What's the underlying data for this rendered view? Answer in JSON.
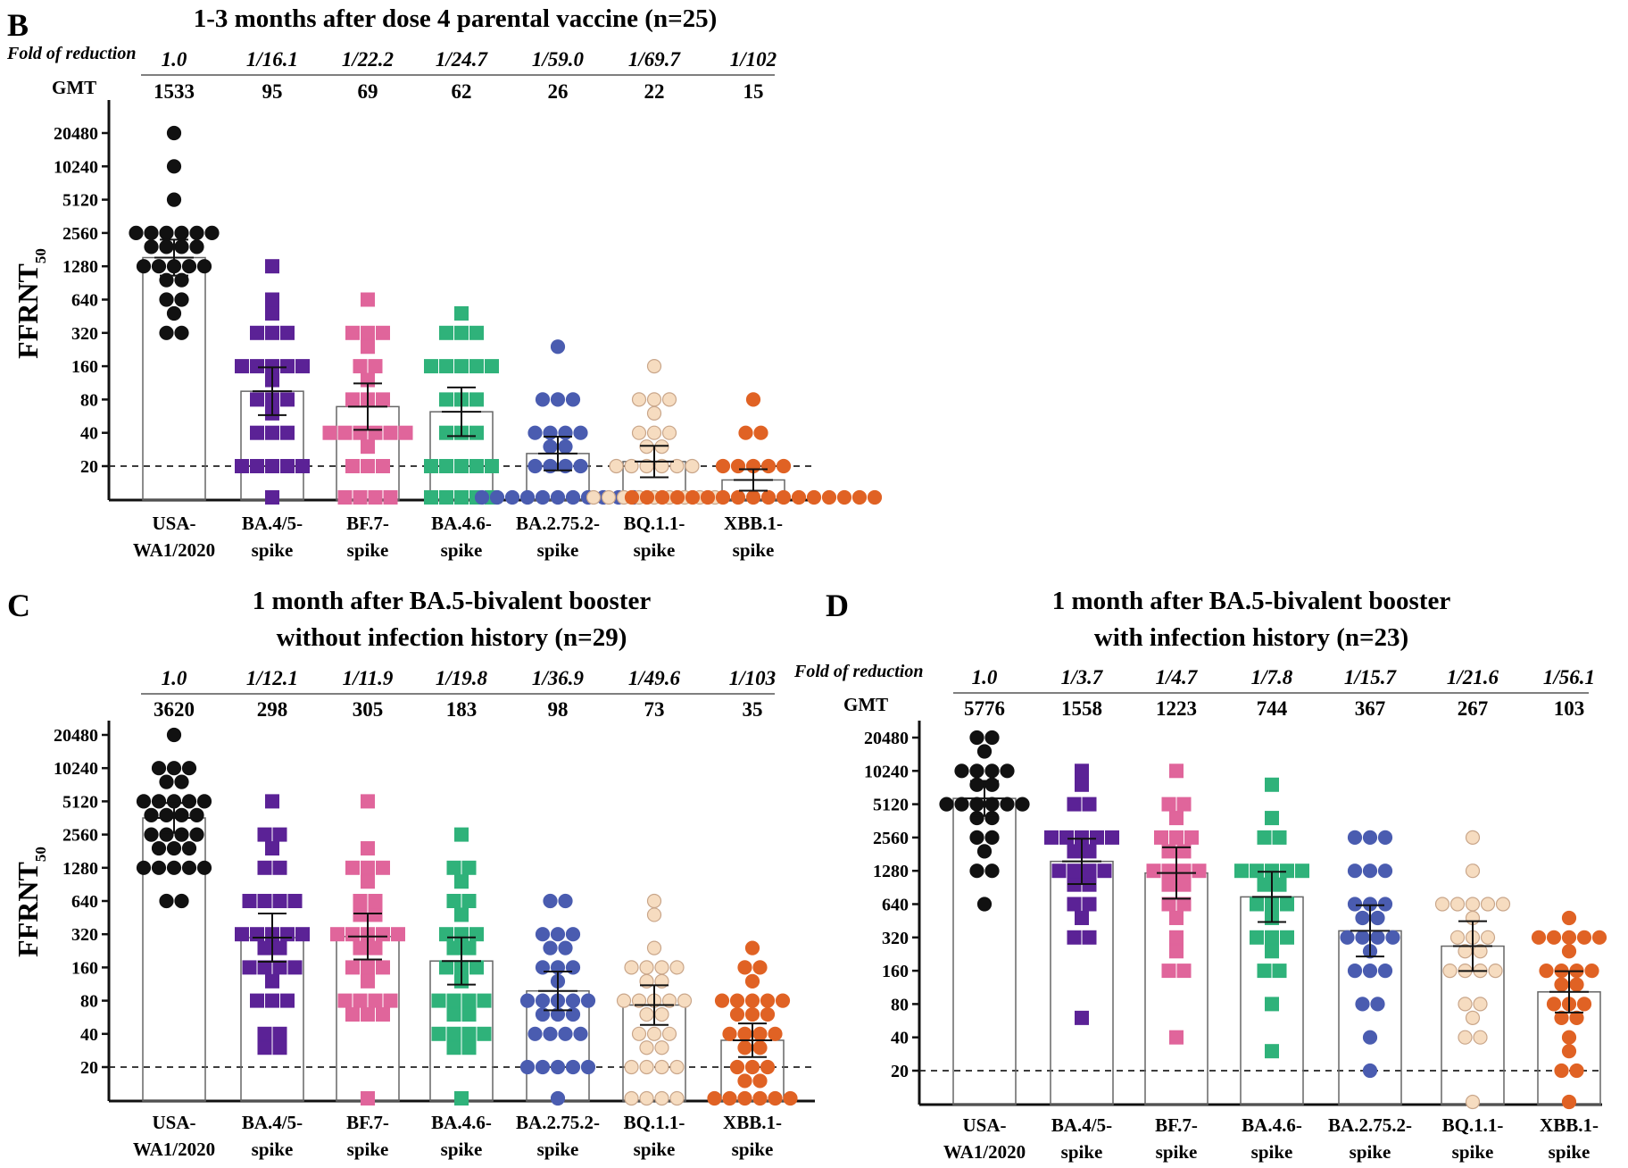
{
  "colors": {
    "USA-WA1/2020": "#111111",
    "BA.4/5-spike": "#5b2296",
    "BF.7-spike": "#e0659b",
    "BA.4.6-spike": "#2fb27a",
    "BA.2.75.2-spike": "#4a5cb0",
    "BQ.1.1-spike": "#f6dcc0",
    "XBB.1-spike": "#e06224"
  },
  "chart_data": [
    {
      "panel": "B",
      "type": "scatter",
      "title_lines": [
        "1-3 months after dose 4 parental vaccine (n=25)"
      ],
      "fold_label": "Fold of reduction",
      "gmt_label": "GMT",
      "ylabel": "FFRNT50",
      "y_scale": "log2",
      "y_ticks": [
        20,
        40,
        80,
        160,
        320,
        640,
        1280,
        2560,
        5120,
        10240,
        20480
      ],
      "limit_of_detection": 20,
      "categories": [
        {
          "name": "USA-WA1/2020",
          "label_lines": [
            "USA-",
            "WA1/2020"
          ],
          "marker": "circle",
          "fold": "1.0",
          "gmt": 1533,
          "values": [
            20480,
            10240,
            5120,
            2560,
            2560,
            2560,
            2560,
            2560,
            2560,
            1920,
            1920,
            1920,
            1920,
            1280,
            1280,
            1280,
            1280,
            1280,
            960,
            960,
            640,
            640,
            480,
            320,
            320
          ]
        },
        {
          "name": "BA.4/5-spike",
          "label_lines": [
            "BA.4/5-",
            "spike"
          ],
          "marker": "square",
          "fold": "1/16.1",
          "gmt": 95,
          "values": [
            1280,
            640,
            480,
            320,
            320,
            320,
            160,
            160,
            160,
            160,
            160,
            120,
            80,
            80,
            80,
            60,
            40,
            40,
            40,
            20,
            20,
            20,
            20,
            20,
            10
          ]
        },
        {
          "name": "BF.7-spike",
          "label_lines": [
            "BF.7-",
            "spike"
          ],
          "marker": "square",
          "fold": "1/22.2",
          "gmt": 69,
          "values": [
            640,
            320,
            320,
            320,
            240,
            160,
            160,
            120,
            80,
            80,
            80,
            40,
            40,
            40,
            40,
            40,
            40,
            30,
            20,
            20,
            20,
            10,
            10,
            10,
            10
          ]
        },
        {
          "name": "BA.4.6-spike",
          "label_lines": [
            "BA.4.6-",
            "spike"
          ],
          "marker": "square",
          "fold": "1/24.7",
          "gmt": 62,
          "values": [
            480,
            320,
            320,
            320,
            160,
            160,
            160,
            160,
            160,
            80,
            80,
            80,
            40,
            40,
            40,
            20,
            20,
            20,
            20,
            20,
            10,
            10,
            10,
            10,
            10
          ]
        },
        {
          "name": "BA.2.75.2-spike",
          "label_lines": [
            "BA.2.75.2-",
            "spike"
          ],
          "marker": "circle",
          "fold": "1/59.0",
          "gmt": 26,
          "values": [
            240,
            80,
            80,
            80,
            40,
            40,
            40,
            40,
            30,
            30,
            20,
            20,
            20,
            20,
            10,
            10,
            10,
            10,
            10,
            10,
            10,
            10,
            10,
            10,
            10
          ]
        },
        {
          "name": "BQ.1.1-spike",
          "label_lines": [
            "BQ.1.1-",
            "spike"
          ],
          "marker": "circle",
          "fold": "1/69.7",
          "gmt": 22,
          "values": [
            160,
            80,
            80,
            80,
            60,
            40,
            40,
            40,
            30,
            30,
            20,
            20,
            20,
            20,
            20,
            20,
            10,
            10,
            10,
            10,
            10,
            10,
            10,
            10,
            10
          ]
        },
        {
          "name": "XBB.1-spike",
          "label_lines": [
            "XBB.1-",
            "spike"
          ],
          "marker": "circle",
          "fold": "1/102",
          "gmt": 15,
          "values": [
            80,
            40,
            40,
            20,
            20,
            20,
            20,
            20,
            10,
            10,
            10,
            10,
            10,
            10,
            10,
            10,
            10,
            10,
            10,
            10,
            10,
            10,
            10,
            10,
            10
          ]
        }
      ]
    },
    {
      "panel": "C",
      "type": "scatter",
      "title_lines": [
        "1 month after BA.5-bivalent booster",
        "without infection history (n=29)"
      ],
      "fold_label": "",
      "gmt_label": "",
      "ylabel": "FFRNT50",
      "y_scale": "log2",
      "y_ticks": [
        20,
        40,
        80,
        160,
        320,
        640,
        1280,
        2560,
        5120,
        10240,
        20480
      ],
      "limit_of_detection": 20,
      "categories": [
        {
          "name": "USA-WA1/2020",
          "label_lines": [
            "USA-",
            "WA1/2020"
          ],
          "marker": "circle",
          "fold": "1.0",
          "gmt": 3620,
          "values": [
            20480,
            10240,
            10240,
            10240,
            7680,
            7680,
            5120,
            5120,
            5120,
            5120,
            5120,
            3840,
            3840,
            3840,
            3840,
            2560,
            2560,
            2560,
            2560,
            1920,
            1920,
            1920,
            1280,
            1280,
            1280,
            1280,
            1280,
            640,
            640
          ]
        },
        {
          "name": "BA.4/5-spike",
          "label_lines": [
            "BA.4/5-",
            "spike"
          ],
          "marker": "square",
          "fold": "1/12.1",
          "gmt": 298,
          "values": [
            5120,
            2560,
            2560,
            1920,
            1280,
            1280,
            640,
            640,
            640,
            640,
            320,
            320,
            320,
            320,
            320,
            240,
            240,
            160,
            160,
            160,
            160,
            120,
            80,
            80,
            80,
            40,
            40,
            30,
            30
          ]
        },
        {
          "name": "BF.7-spike",
          "label_lines": [
            "BF.7-",
            "spike"
          ],
          "marker": "square",
          "fold": "1/11.9",
          "gmt": 305,
          "values": [
            5120,
            1920,
            1280,
            1280,
            1280,
            960,
            640,
            640,
            480,
            480,
            320,
            320,
            320,
            320,
            320,
            240,
            240,
            160,
            160,
            160,
            120,
            80,
            80,
            80,
            80,
            60,
            60,
            60,
            10
          ]
        },
        {
          "name": "BA.4.6-spike",
          "label_lines": [
            "BA.4.6-",
            "spike"
          ],
          "marker": "square",
          "fold": "1/19.8",
          "gmt": 183,
          "values": [
            2560,
            1280,
            1280,
            960,
            640,
            640,
            480,
            320,
            320,
            320,
            240,
            240,
            160,
            160,
            160,
            120,
            80,
            80,
            80,
            80,
            60,
            60,
            40,
            40,
            40,
            40,
            30,
            30,
            10
          ]
        },
        {
          "name": "BA.2.75.2-spike",
          "label_lines": [
            "BA.2.75.2-",
            "spike"
          ],
          "marker": "circle",
          "fold": "1/36.9",
          "gmt": 98,
          "values": [
            640,
            640,
            320,
            320,
            320,
            240,
            240,
            160,
            160,
            160,
            120,
            80,
            80,
            80,
            80,
            80,
            60,
            60,
            60,
            40,
            40,
            40,
            40,
            20,
            20,
            20,
            20,
            20,
            10
          ]
        },
        {
          "name": "BQ.1.1-spike",
          "label_lines": [
            "BQ.1.1-",
            "spike"
          ],
          "marker": "circle",
          "fold": "1/49.6",
          "gmt": 73,
          "values": [
            640,
            480,
            240,
            160,
            160,
            160,
            160,
            120,
            120,
            80,
            80,
            80,
            80,
            80,
            60,
            60,
            40,
            40,
            40,
            30,
            30,
            20,
            20,
            20,
            20,
            10,
            10,
            10,
            10
          ]
        },
        {
          "name": "XBB.1-spike",
          "label_lines": [
            "XBB.1-",
            "spike"
          ],
          "marker": "circle",
          "fold": "1/103",
          "gmt": 35,
          "values": [
            240,
            160,
            160,
            120,
            80,
            80,
            80,
            80,
            80,
            60,
            60,
            60,
            40,
            40,
            40,
            40,
            30,
            30,
            20,
            20,
            20,
            15,
            15,
            10,
            10,
            10,
            10,
            10,
            10
          ]
        }
      ]
    },
    {
      "panel": "D",
      "type": "scatter",
      "title_lines": [
        "1 month after BA.5-bivalent booster",
        "with infection history (n=23)"
      ],
      "fold_label": "Fold of reduction",
      "gmt_label": "GMT",
      "ylabel": "",
      "y_scale": "log2",
      "y_ticks": [
        20,
        40,
        80,
        160,
        320,
        640,
        1280,
        2560,
        5120,
        10240,
        20480
      ],
      "limit_of_detection": 20,
      "categories": [
        {
          "name": "USA-WA1/2020",
          "label_lines": [
            "USA-",
            "WA1/2020"
          ],
          "marker": "circle",
          "fold": "1.0",
          "gmt": 5776,
          "values": [
            20480,
            20480,
            15360,
            10240,
            10240,
            10240,
            10240,
            7680,
            7680,
            5120,
            5120,
            5120,
            5120,
            5120,
            5120,
            3840,
            3840,
            2560,
            2560,
            1920,
            1280,
            1280,
            640
          ]
        },
        {
          "name": "BA.4/5-spike",
          "label_lines": [
            "BA.4/5-",
            "spike"
          ],
          "marker": "square",
          "fold": "1/3.7",
          "gmt": 1558,
          "values": [
            10240,
            7680,
            5120,
            5120,
            2560,
            2560,
            2560,
            2560,
            2560,
            1920,
            1920,
            1280,
            1280,
            1280,
            1280,
            960,
            960,
            640,
            640,
            480,
            320,
            320,
            60
          ]
        },
        {
          "name": "BF.7-spike",
          "label_lines": [
            "BF.7-",
            "spike"
          ],
          "marker": "square",
          "fold": "1/4.7",
          "gmt": 1223,
          "values": [
            10240,
            5120,
            5120,
            3840,
            2560,
            2560,
            2560,
            1920,
            1920,
            1280,
            1280,
            1280,
            1280,
            960,
            960,
            640,
            640,
            480,
            320,
            240,
            160,
            160,
            40
          ]
        },
        {
          "name": "BA.4.6-spike",
          "label_lines": [
            "BA.4.6-",
            "spike"
          ],
          "marker": "square",
          "fold": "1/7.8",
          "gmt": 744,
          "values": [
            7680,
            3840,
            2560,
            2560,
            1280,
            1280,
            1280,
            1280,
            1280,
            960,
            960,
            640,
            640,
            640,
            480,
            320,
            320,
            320,
            240,
            160,
            160,
            80,
            30
          ]
        },
        {
          "name": "BA.2.75.2-spike",
          "label_lines": [
            "BA.2.75.2-",
            "spike"
          ],
          "marker": "circle",
          "fold": "1/15.7",
          "gmt": 367,
          "values": [
            2560,
            2560,
            2560,
            1280,
            1280,
            1280,
            640,
            640,
            640,
            480,
            480,
            320,
            320,
            320,
            320,
            240,
            160,
            160,
            160,
            80,
            80,
            40,
            20
          ]
        },
        {
          "name": "BQ.1.1-spike",
          "label_lines": [
            "BQ.1.1-",
            "spike"
          ],
          "marker": "circle",
          "fold": "1/21.6",
          "gmt": 267,
          "values": [
            2560,
            1280,
            640,
            640,
            640,
            640,
            640,
            480,
            320,
            320,
            320,
            240,
            240,
            160,
            160,
            160,
            160,
            80,
            80,
            60,
            40,
            40,
            10
          ]
        },
        {
          "name": "XBB.1-spike",
          "label_lines": [
            "XBB.1-",
            "spike"
          ],
          "marker": "circle",
          "fold": "1/56.1",
          "gmt": 103,
          "values": [
            480,
            320,
            320,
            320,
            320,
            320,
            240,
            160,
            160,
            160,
            160,
            120,
            120,
            80,
            80,
            80,
            60,
            60,
            40,
            30,
            20,
            20,
            10
          ]
        }
      ]
    }
  ],
  "panel_labels": [
    "B",
    "C",
    "D"
  ]
}
